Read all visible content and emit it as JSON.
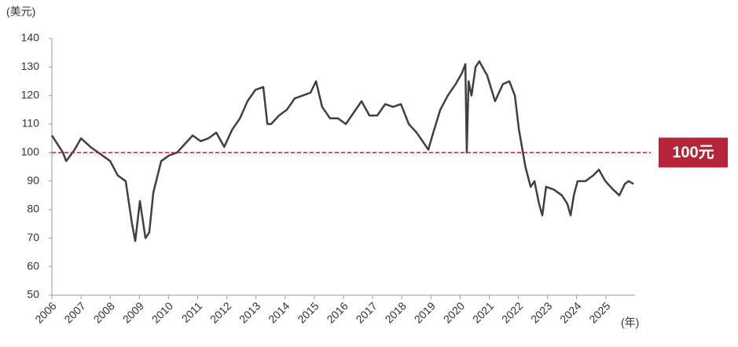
{
  "chart_data": {
    "type": "line",
    "y_unit_label": "(美元)",
    "x_unit_label": "(年)",
    "color": "#404040",
    "x": [
      2006.0,
      2006.38,
      2006.49,
      2006.78,
      2007.0,
      2007.32,
      2007.73,
      2008.0,
      2008.26,
      2008.53,
      2008.75,
      2008.86,
      2009.02,
      2009.21,
      2009.34,
      2009.48,
      2009.75,
      2010.02,
      2010.29,
      2010.56,
      2010.83,
      2011.1,
      2011.37,
      2011.64,
      2011.91,
      2012.18,
      2012.45,
      2012.71,
      2012.98,
      2013.25,
      2013.39,
      2013.52,
      2013.79,
      2014.06,
      2014.33,
      2014.6,
      2014.87,
      2015.06,
      2015.27,
      2015.54,
      2015.81,
      2016.08,
      2016.35,
      2016.62,
      2016.89,
      2017.16,
      2017.43,
      2017.7,
      2017.97,
      2018.24,
      2018.51,
      2018.78,
      2018.91,
      2019.05,
      2019.32,
      2019.58,
      2019.85,
      2020.07,
      2020.18,
      2020.23,
      2020.29,
      2020.39,
      2020.53,
      2020.66,
      2020.93,
      2021.2,
      2021.47,
      2021.69,
      2021.88,
      2022.02,
      2022.24,
      2022.42,
      2022.55,
      2022.71,
      2022.82,
      2022.95,
      2023.22,
      2023.49,
      2023.68,
      2023.79,
      2023.9,
      2024.03,
      2024.3,
      2024.57,
      2024.76,
      2024.98,
      2025.25,
      2025.46,
      2025.65,
      2025.78,
      2025.95
    ],
    "values": [
      106,
      100,
      97,
      101,
      105,
      102,
      99,
      97,
      92,
      90,
      75,
      69,
      83,
      70,
      72,
      86,
      97,
      99,
      100,
      103,
      106,
      104,
      105,
      107,
      102,
      108,
      112,
      118,
      122,
      123,
      110,
      110,
      113,
      115,
      119,
      120,
      121,
      125,
      116,
      112,
      112,
      110,
      114,
      118,
      113,
      113,
      117,
      116,
      117,
      110,
      107,
      103,
      101,
      106,
      115,
      120,
      124,
      128,
      131,
      100,
      125,
      120,
      130,
      132,
      127,
      118,
      124,
      125,
      120,
      108,
      95,
      88,
      90,
      82,
      78,
      88,
      87,
      85,
      82,
      78,
      85,
      90,
      90,
      92,
      94,
      90,
      87,
      85,
      89,
      90,
      89
    ],
    "xlim": [
      2006,
      2026
    ],
    "xticks": [
      2006,
      2007,
      2008,
      2009,
      2010,
      2011,
      2012,
      2013,
      2014,
      2015,
      2016,
      2017,
      2018,
      2019,
      2020,
      2021,
      2022,
      2023,
      2024,
      2025
    ],
    "ylim": [
      50,
      140
    ],
    "yticks": [
      50,
      60,
      70,
      80,
      90,
      100,
      110,
      120,
      130,
      140
    ],
    "reference_line": {
      "value": 100,
      "label": "100元",
      "color": "#b5253a"
    }
  }
}
